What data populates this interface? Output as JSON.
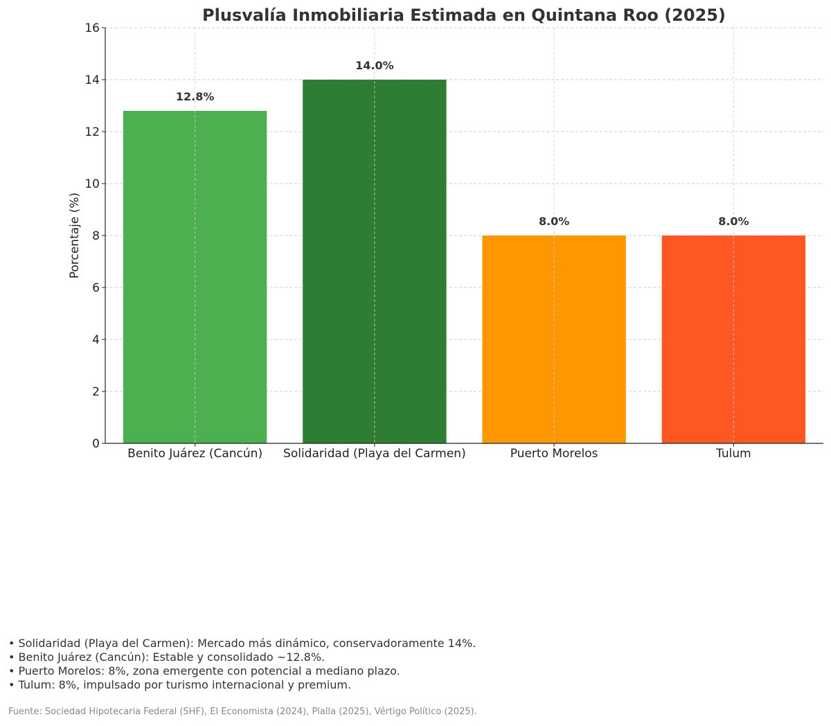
{
  "chart_data": {
    "type": "bar",
    "title": "Plusvalía Inmobiliaria Estimada en Quintana Roo (2025)",
    "xlabel": "",
    "ylabel": "Porcentaje (%)",
    "categories": [
      "Benito Juárez (Cancún)",
      "Solidaridad (Playa del Carmen)",
      "Puerto Morelos",
      "Tulum"
    ],
    "values": [
      12.8,
      14.0,
      8.0,
      8.0
    ],
    "data_labels": [
      "12.8%",
      "14.0%",
      "8.0%",
      "8.0%"
    ],
    "colors": [
      "#4caf50",
      "#2e7d32",
      "#ff9800",
      "#ff5722"
    ],
    "ylim": [
      0,
      16
    ],
    "yticks": [
      0,
      2,
      4,
      6,
      8,
      10,
      12,
      14,
      16
    ],
    "grid": true,
    "grid_style": "dashed"
  },
  "notes": [
    "• Solidaridad (Playa del Carmen): Mercado más dinámico, conservadoramente 14%.",
    "• Benito Juárez (Cancún): Estable y consolidado ~12.8%.",
    "• Puerto Morelos: 8%, zona emergente con potencial a mediano plazo.",
    "• Tulum: 8%, impulsado por turismo internacional y premium."
  ],
  "source": "Fuente: Sociedad Hipotecaria Federal (SHF), El Economista (2024), Plalla (2025), Vértigo Político (2025)."
}
